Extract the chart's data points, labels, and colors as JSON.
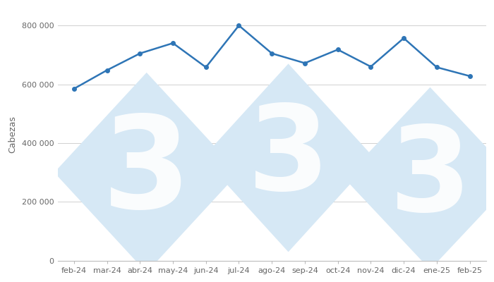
{
  "months": [
    "feb-24",
    "mar-24",
    "abr-24",
    "may-24",
    "jun-24",
    "jul-24",
    "ago-24",
    "sep-24",
    "oct-24",
    "nov-24",
    "dic-24",
    "ene-25",
    "feb-25"
  ],
  "values": [
    585000,
    648000,
    705000,
    740000,
    658000,
    800000,
    705000,
    672000,
    718000,
    660000,
    757000,
    658000,
    628000
  ],
  "line_color": "#2e75b6",
  "marker": "o",
  "marker_size": 4,
  "linewidth": 1.8,
  "ylabel": "Cabezas",
  "ylim": [
    0,
    860000
  ],
  "yticks": [
    0,
    200000,
    400000,
    600000,
    800000
  ],
  "ytick_labels": [
    "0",
    "200 000",
    "400 000",
    "600 000",
    "800 000"
  ],
  "background_color": "#ffffff",
  "grid_color": "#d0d0d0",
  "watermark_color": "#d6e8f5",
  "fig_width": 7.0,
  "fig_height": 4.0,
  "tick_fontsize": 8,
  "ylabel_fontsize": 9
}
